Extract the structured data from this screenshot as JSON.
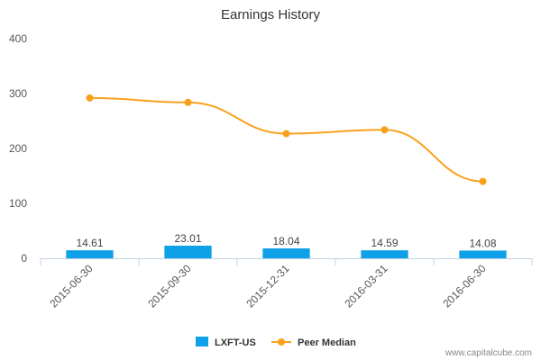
{
  "chart_data": {
    "type": "bar",
    "title": "Earnings History",
    "categories": [
      "2015-06-30",
      "2015-09-30",
      "2015-12-31",
      "2016-03-31",
      "2016-06-30"
    ],
    "ylim": [
      0,
      400
    ],
    "yticks": [
      0,
      100,
      200,
      300,
      400
    ],
    "grid": false,
    "legend_position": "bottom",
    "series": [
      {
        "name": "LXFT-US",
        "kind": "bar",
        "color": "#0ea1e8",
        "values": [
          14.61,
          23.01,
          18.04,
          14.59,
          14.08
        ],
        "labels": [
          "14.61",
          "23.01",
          "18.04",
          "14.59",
          "14.08"
        ]
      },
      {
        "name": "Peer Median",
        "kind": "line",
        "smooth": true,
        "color": "#f9a11b",
        "values": [
          292,
          284,
          227,
          234,
          140
        ]
      }
    ]
  },
  "credit": "www.capitalcube.com"
}
